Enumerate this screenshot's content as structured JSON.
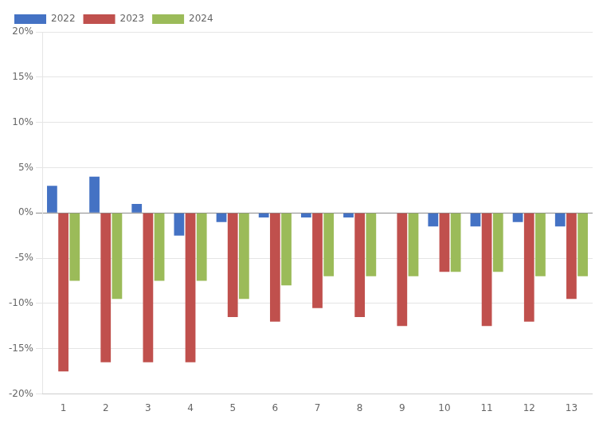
{
  "chart_data": {
    "type": "bar",
    "categories": [
      "1",
      "2",
      "3",
      "4",
      "5",
      "6",
      "7",
      "8",
      "9",
      "10",
      "11",
      "12",
      "13"
    ],
    "series": [
      {
        "name": "2022",
        "color": "#4472C4",
        "values": [
          3.0,
          4.0,
          1.0,
          -2.5,
          -1.0,
          -0.5,
          -0.5,
          -0.5,
          0.0,
          -1.5,
          -1.5,
          -1.0,
          -1.5
        ]
      },
      {
        "name": "2023",
        "color": "#C0504D",
        "values": [
          -17.5,
          -16.5,
          -16.5,
          -16.5,
          -11.5,
          -12.0,
          -10.5,
          -11.5,
          -12.5,
          -6.5,
          -12.5,
          -12.0,
          -9.5
        ]
      },
      {
        "name": "2024",
        "color": "#9BBB59",
        "values": [
          -7.5,
          -9.5,
          -7.5,
          -7.5,
          -9.5,
          -8.0,
          -7.0,
          -7.0,
          -7.0,
          -6.5,
          -6.5,
          -7.0,
          -7.0
        ]
      }
    ],
    "ylim": [
      -20,
      20
    ],
    "yticks": [
      {
        "value": -20,
        "label": "-20%"
      },
      {
        "value": -15,
        "label": "-15%"
      },
      {
        "value": -10,
        "label": "-10%"
      },
      {
        "value": -5,
        "label": "-5%"
      },
      {
        "value": 0,
        "label": "0%"
      },
      {
        "value": 5,
        "label": "5%"
      },
      {
        "value": 10,
        "label": "10%"
      },
      {
        "value": 15,
        "label": "15%"
      },
      {
        "value": 20,
        "label": "20%"
      }
    ],
    "grid": true,
    "legend": "upper left"
  }
}
